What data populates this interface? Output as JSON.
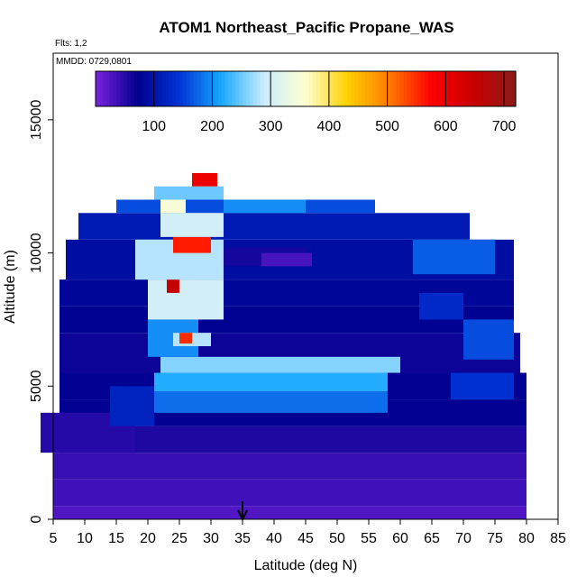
{
  "chart_data": {
    "type": "heatmap",
    "title": "ATOM1 Northeast_Pacific Propane_WAS",
    "annotations": [
      "Flts: 1,2",
      "MMDD: 0729,0801"
    ],
    "xlabel": "Latitude (deg N)",
    "ylabel": "Altitude (m)",
    "xlim": [
      5,
      85
    ],
    "ylim": [
      0,
      17500
    ],
    "x_ticks": [
      5,
      10,
      15,
      20,
      25,
      30,
      35,
      40,
      45,
      50,
      55,
      60,
      65,
      70,
      75,
      80,
      85
    ],
    "y_ticks": [
      0,
      5000,
      10000,
      15000
    ],
    "grid": false,
    "legend": "colorbar top",
    "colorbar": {
      "min": 0,
      "max": 720,
      "ticks": [
        100,
        200,
        300,
        400,
        500,
        600,
        700
      ],
      "colors": [
        "#7b22e0",
        "#00008f",
        "#0033d6",
        "#1aa8ff",
        "#c9ecff",
        "#ffffd0",
        "#ffd000",
        "#ff7a00",
        "#ff0000",
        "#c80000",
        "#8b1a1a"
      ]
    },
    "marker": {
      "label": "arrow",
      "x": 35
    },
    "cells": [
      {
        "lat": [
          5,
          80
        ],
        "alt": [
          0,
          500
        ],
        "value": 25
      },
      {
        "lat": [
          5,
          80
        ],
        "alt": [
          500,
          1500
        ],
        "value": 35
      },
      {
        "lat": [
          5,
          80
        ],
        "alt": [
          1500,
          2500
        ],
        "value": 40
      },
      {
        "lat": [
          6,
          80
        ],
        "alt": [
          2500,
          3500
        ],
        "value": 55
      },
      {
        "lat": [
          6,
          80
        ],
        "alt": [
          3500,
          4500
        ],
        "value": 70
      },
      {
        "lat": [
          6,
          80
        ],
        "alt": [
          4500,
          5500
        ],
        "value": 70
      },
      {
        "lat": [
          6,
          79
        ],
        "alt": [
          5500,
          7000
        ],
        "value": 65
      },
      {
        "lat": [
          6,
          78
        ],
        "alt": [
          7000,
          8000
        ],
        "value": 75
      },
      {
        "lat": [
          6,
          78
        ],
        "alt": [
          8000,
          9000
        ],
        "value": 80
      },
      {
        "lat": [
          7,
          78
        ],
        "alt": [
          9000,
          10500
        ],
        "value": 90
      },
      {
        "lat": [
          9,
          71
        ],
        "alt": [
          10500,
          11500
        ],
        "value": 110
      },
      {
        "lat": [
          15,
          56
        ],
        "alt": [
          11500,
          12000
        ],
        "value": 160
      },
      {
        "lat": [
          21,
          32
        ],
        "alt": [
          12000,
          12500
        ],
        "value": 250
      },
      {
        "lat": [
          27,
          31
        ],
        "alt": [
          12500,
          13000
        ],
        "value": 600
      },
      {
        "lat": [
          3,
          18
        ],
        "alt": [
          2500,
          4000
        ],
        "value": 50
      },
      {
        "lat": [
          14,
          21
        ],
        "alt": [
          3500,
          5000
        ],
        "value": 120
      },
      {
        "lat": [
          21,
          58
        ],
        "alt": [
          4000,
          4800
        ],
        "value": 180
      },
      {
        "lat": [
          21,
          58
        ],
        "alt": [
          4800,
          5500
        ],
        "value": 220
      },
      {
        "lat": [
          22,
          60
        ],
        "alt": [
          5500,
          6100
        ],
        "value": 260
      },
      {
        "lat": [
          20,
          28
        ],
        "alt": [
          6100,
          8000
        ],
        "value": 200
      },
      {
        "lat": [
          24,
          30
        ],
        "alt": [
          6500,
          7000
        ],
        "value": 280
      },
      {
        "lat": [
          25,
          27
        ],
        "alt": [
          6600,
          7000
        ],
        "value": 550
      },
      {
        "lat": [
          20,
          32
        ],
        "alt": [
          7500,
          9000
        ],
        "value": 300
      },
      {
        "lat": [
          23,
          25
        ],
        "alt": [
          8500,
          9000
        ],
        "value": 650
      },
      {
        "lat": [
          18,
          32
        ],
        "alt": [
          9000,
          10500
        ],
        "value": 280
      },
      {
        "lat": [
          24,
          30
        ],
        "alt": [
          10000,
          10600
        ],
        "value": 560
      },
      {
        "lat": [
          22,
          32
        ],
        "alt": [
          10600,
          11500
        ],
        "value": 300
      },
      {
        "lat": [
          22,
          26
        ],
        "alt": [
          11500,
          12000
        ],
        "value": 350
      },
      {
        "lat": [
          32,
          45
        ],
        "alt": [
          11500,
          12000
        ],
        "value": 200
      },
      {
        "lat": [
          32,
          45
        ],
        "alt": [
          9500,
          10200
        ],
        "value": 60
      },
      {
        "lat": [
          38,
          46
        ],
        "alt": [
          9500,
          10000
        ],
        "value": 30
      },
      {
        "lat": [
          62,
          75
        ],
        "alt": [
          9200,
          10500
        ],
        "value": 170
      },
      {
        "lat": [
          70,
          78
        ],
        "alt": [
          6000,
          7500
        ],
        "value": 160
      },
      {
        "lat": [
          68,
          78
        ],
        "alt": [
          4500,
          5500
        ],
        "value": 140
      },
      {
        "lat": [
          63,
          70
        ],
        "alt": [
          7500,
          8500
        ],
        "value": 130
      }
    ]
  }
}
